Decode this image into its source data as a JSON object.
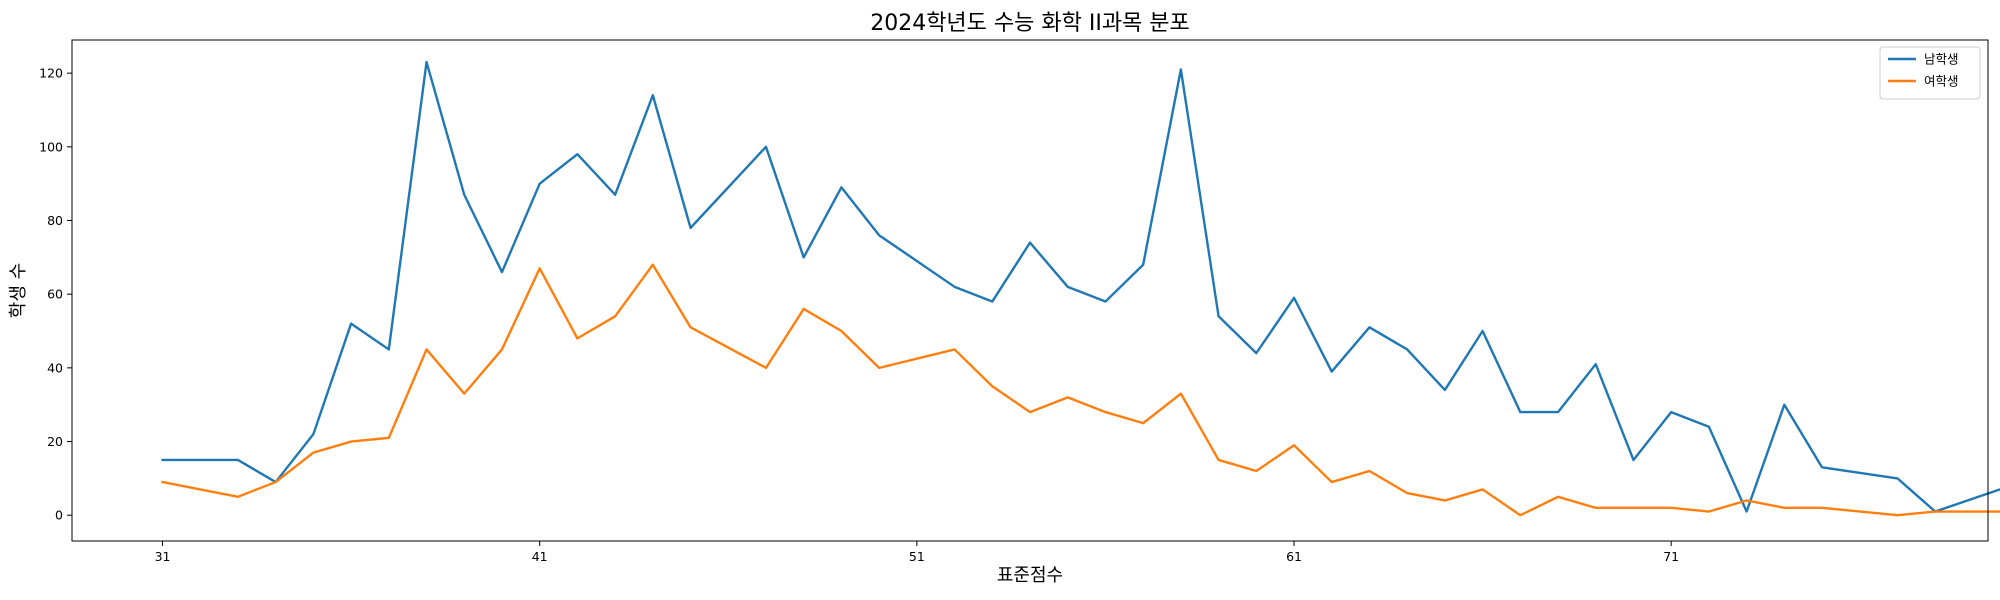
{
  "chart_data": {
    "type": "line",
    "title": "2024학년도 수능 화학 II과목 분포",
    "xlabel": "표준점수",
    "ylabel": "학생 수",
    "xlim": [
      28.6,
      79.4
    ],
    "ylim": [
      -7,
      129
    ],
    "xticks": [
      31,
      41,
      51,
      61,
      71
    ],
    "yticks": [
      0,
      20,
      40,
      60,
      80,
      100,
      120
    ],
    "grid": false,
    "legend_position": "top-right",
    "x": [
      31,
      33,
      34,
      35,
      36,
      37,
      38,
      39,
      40,
      41,
      42,
      43,
      44,
      45,
      47,
      48,
      49,
      50,
      52,
      53,
      54,
      55,
      56,
      57,
      58,
      59,
      60,
      61,
      62,
      63,
      64,
      65,
      66,
      67,
      68,
      69,
      70,
      71,
      72,
      73,
      74,
      75,
      77,
      78,
      80
    ],
    "series": [
      {
        "name": "남학생",
        "color": "#1f77b4",
        "values": [
          15,
          15,
          9,
          22,
          52,
          45,
          123,
          87,
          66,
          90,
          98,
          87,
          114,
          78,
          100,
          70,
          89,
          76,
          62,
          58,
          74,
          62,
          58,
          68,
          121,
          54,
          44,
          59,
          39,
          51,
          45,
          34,
          50,
          28,
          28,
          41,
          15,
          28,
          24,
          1,
          30,
          13,
          10,
          1,
          8
        ]
      },
      {
        "name": "여학생",
        "color": "#ff7f0e",
        "values": [
          9,
          5,
          9,
          17,
          20,
          21,
          45,
          33,
          45,
          67,
          48,
          54,
          68,
          51,
          40,
          56,
          50,
          40,
          45,
          35,
          28,
          32,
          28,
          25,
          33,
          15,
          12,
          19,
          9,
          12,
          6,
          4,
          7,
          0,
          5,
          2,
          2,
          2,
          1,
          4,
          2,
          2,
          0,
          1,
          1
        ]
      }
    ]
  }
}
